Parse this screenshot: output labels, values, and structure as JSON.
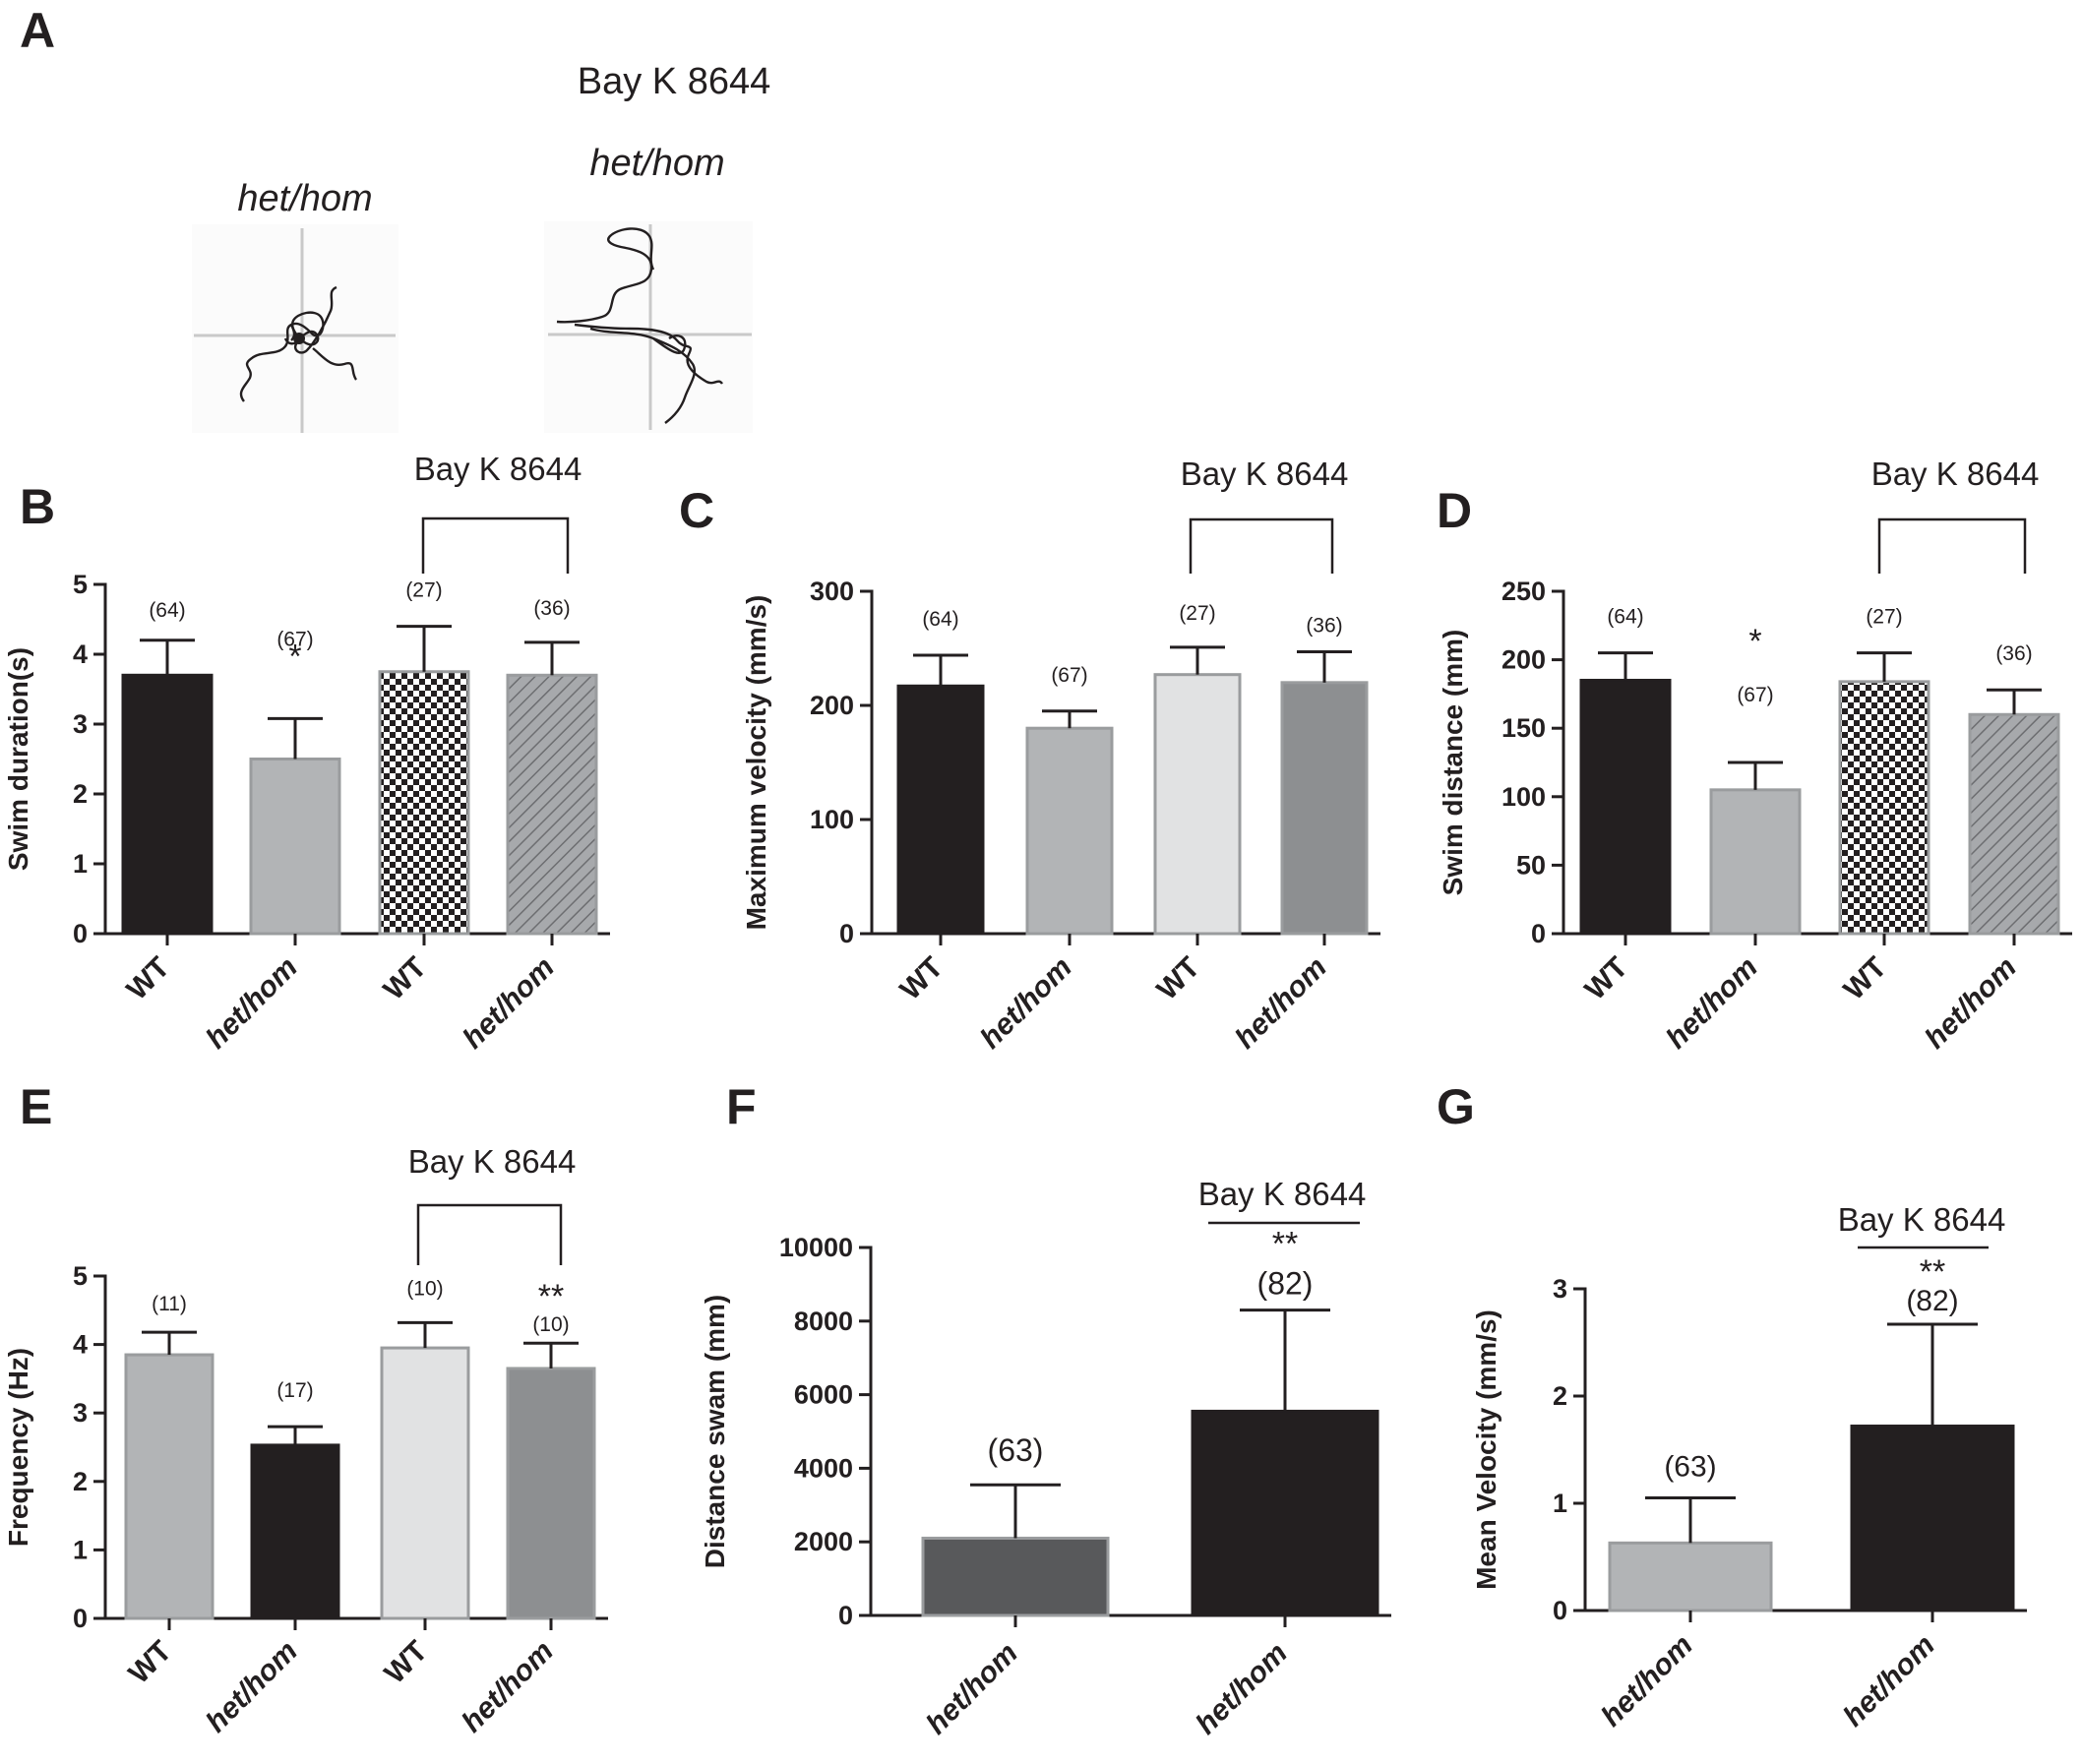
{
  "figure": {
    "panel_a": {
      "letter": "A",
      "treatment_label": "Bay K 8644",
      "trace_labels": [
        "het/hom",
        "het/hom"
      ]
    }
  },
  "chart_data": [
    {
      "panel": "B",
      "type": "bar",
      "group_label": "Bay K 8644",
      "categories": [
        "WT",
        "het/hom",
        "WT",
        "het/hom"
      ],
      "values": [
        3.7,
        2.5,
        3.75,
        3.7
      ],
      "errors": [
        0.5,
        0.58,
        0.65,
        0.47
      ],
      "n_labels": [
        "(64)",
        "(67)",
        "(27)",
        "(36)"
      ],
      "significance": [
        "",
        "*",
        "",
        ""
      ],
      "ylabel": "Swim duration(s)",
      "ylim": [
        0,
        5
      ],
      "yticks": [
        0,
        1,
        2,
        3,
        4,
        5
      ],
      "bar_fills": [
        "#231f20",
        "#b2b4b6",
        "checker",
        "hatch"
      ]
    },
    {
      "panel": "C",
      "type": "bar",
      "group_label": "Bay K 8644",
      "categories": [
        "WT",
        "het/hom",
        "WT",
        "het/hom"
      ],
      "values": [
        217,
        180,
        227,
        220
      ],
      "errors": [
        27,
        15,
        24,
        27
      ],
      "n_labels": [
        "(64)",
        "(67)",
        "(27)",
        "(36)"
      ],
      "significance": [
        "",
        "",
        "",
        ""
      ],
      "ylabel": "Maximum velocity (mm/s)",
      "ylim": [
        0,
        300
      ],
      "yticks": [
        0,
        100,
        200,
        300
      ],
      "bar_fills": [
        "#231f20",
        "#b2b4b6",
        "#e1e2e3",
        "#8d8f91"
      ]
    },
    {
      "panel": "D",
      "type": "bar",
      "group_label": "Bay K 8644",
      "categories": [
        "WT",
        "het/hom",
        "WT",
        "het/hom"
      ],
      "values": [
        185,
        105,
        184,
        160
      ],
      "errors": [
        20,
        20,
        21,
        18
      ],
      "n_labels": [
        "(64)",
        "(67)",
        "(27)",
        "(36)"
      ],
      "significance": [
        "",
        "*",
        "",
        ""
      ],
      "ylabel": "Swim distance (mm)",
      "ylim": [
        0,
        250
      ],
      "yticks": [
        0,
        50,
        100,
        150,
        200,
        250
      ],
      "bar_fills": [
        "#231f20",
        "#b2b4b6",
        "checker",
        "hatch"
      ]
    },
    {
      "panel": "E",
      "type": "bar",
      "group_label": "Bay K 8644",
      "categories": [
        "WT",
        "het/hom",
        "WT",
        "het/hom"
      ],
      "values": [
        3.85,
        2.53,
        3.95,
        3.65
      ],
      "errors": [
        0.33,
        0.27,
        0.37,
        0.37
      ],
      "n_labels": [
        "(11)",
        "(17)",
        "(10)",
        "(10)"
      ],
      "significance": [
        "",
        "",
        "",
        "**"
      ],
      "ylabel": "Frequency (Hz)",
      "ylim": [
        0,
        5
      ],
      "yticks": [
        0,
        1,
        2,
        3,
        4,
        5
      ],
      "bar_fills": [
        "#b2b4b6",
        "#231f20",
        "#e1e2e3",
        "#8d8f91"
      ]
    },
    {
      "panel": "F",
      "type": "bar",
      "group_label": "Bay K 8644",
      "categories": [
        "het/hom",
        "het/hom"
      ],
      "values": [
        2100,
        5550
      ],
      "errors": [
        1450,
        2750
      ],
      "n_labels": [
        "(63)",
        "(82)"
      ],
      "significance": [
        "",
        "**"
      ],
      "ylabel": "Distance swam (mm)",
      "ylim": [
        0,
        10000
      ],
      "yticks": [
        0,
        2000,
        4000,
        6000,
        8000,
        10000
      ],
      "bar_fills": [
        "#58595b",
        "#231f20"
      ]
    },
    {
      "panel": "G",
      "type": "bar",
      "group_label": "Bay K 8644",
      "categories": [
        "het/hom",
        "het/hom"
      ],
      "values": [
        0.63,
        1.72
      ],
      "errors": [
        0.42,
        0.95
      ],
      "n_labels": [
        "(63)",
        "(82)"
      ],
      "significance": [
        "",
        "**"
      ],
      "ylabel": "Mean Velocity (mm/s)",
      "ylim": [
        0,
        3
      ],
      "yticks": [
        0,
        1,
        2,
        3
      ],
      "bar_fills": [
        "#b2b4b6",
        "#231f20"
      ]
    }
  ]
}
